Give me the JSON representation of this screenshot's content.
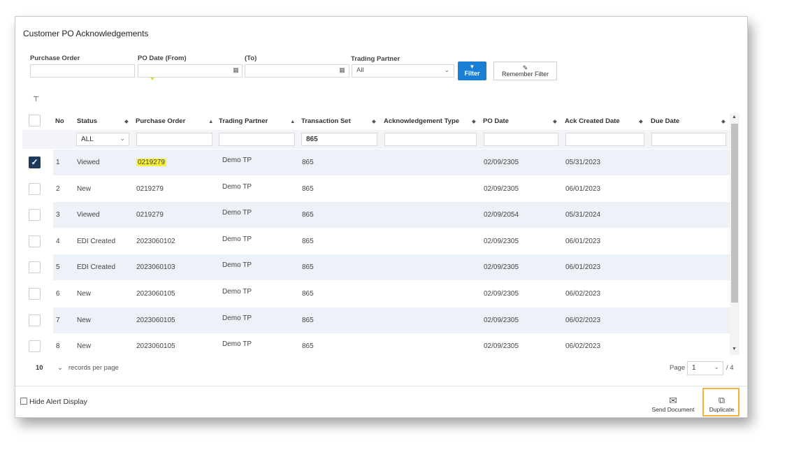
{
  "title": "Customer PO Acknowledgements",
  "filters": {
    "purchase_order_label": "Purchase Order",
    "po_date_from_label": "PO Date (From)",
    "to_label": "(To)",
    "trading_partner_label": "Trading Partner",
    "trading_partner_value": "All",
    "filter_button": "Filter",
    "remember_button": "Remember Filter"
  },
  "columns": [
    "No",
    "Status",
    "Purchase Order",
    "Trading Partner",
    "Transaction Set",
    "Acknowledgement Type",
    "PO Date",
    "Ack Created Date",
    "Due Date"
  ],
  "column_filters": {
    "status": "ALL",
    "transaction_set": "865"
  },
  "rows": [
    {
      "no": "1",
      "status": "Viewed",
      "po": "0219279",
      "partner": "Demo TP",
      "set": "865",
      "ack_type": "",
      "po_date": "02/09/2305",
      "ack_date": "05/31/2023",
      "due": "",
      "checked": true
    },
    {
      "no": "2",
      "status": "New",
      "po": "0219279",
      "partner": "Demo TP",
      "set": "865",
      "ack_type": "",
      "po_date": "02/09/2305",
      "ack_date": "06/01/2023",
      "due": "",
      "checked": false
    },
    {
      "no": "3",
      "status": "Viewed",
      "po": "0219279",
      "partner": "Demo TP",
      "set": "865",
      "ack_type": "",
      "po_date": "02/09/2054",
      "ack_date": "05/31/2024",
      "due": "",
      "checked": false
    },
    {
      "no": "4",
      "status": "EDI Created",
      "po": "2023060102",
      "partner": "Demo TP",
      "set": "865",
      "ack_type": "",
      "po_date": "02/09/2305",
      "ack_date": "06/01/2023",
      "due": "",
      "checked": false
    },
    {
      "no": "5",
      "status": "EDI Created",
      "po": "2023060103",
      "partner": "Demo TP",
      "set": "865",
      "ack_type": "",
      "po_date": "02/09/2305",
      "ack_date": "06/01/2023",
      "due": "",
      "checked": false
    },
    {
      "no": "6",
      "status": "New",
      "po": "2023060105",
      "partner": "Demo TP",
      "set": "865",
      "ack_type": "",
      "po_date": "02/09/2305",
      "ack_date": "06/02/2023",
      "due": "",
      "checked": false
    },
    {
      "no": "7",
      "status": "New",
      "po": "2023060105",
      "partner": "Demo TP",
      "set": "865",
      "ack_type": "",
      "po_date": "02/09/2305",
      "ack_date": "06/02/2023",
      "due": "",
      "checked": false
    },
    {
      "no": "8",
      "status": "New",
      "po": "2023060105",
      "partner": "Demo TP",
      "set": "865",
      "ack_type": "",
      "po_date": "02/09/2305",
      "ack_date": "06/02/2023",
      "due": "",
      "checked": false
    }
  ],
  "pager": {
    "records_value": "10",
    "records_label": "records per page",
    "page_label": "Page",
    "page_value": "1",
    "total_pages": "/ 4"
  },
  "footer": {
    "hide_alert": "Hide Alert Display",
    "send_document": "Send Document",
    "duplicate": "Duplicate"
  },
  "colors": {
    "accent": "#1a7fd4",
    "stripe": "#edf1f8",
    "highlight": "#f5ef3e",
    "focus_frame": "#f0b63c"
  }
}
